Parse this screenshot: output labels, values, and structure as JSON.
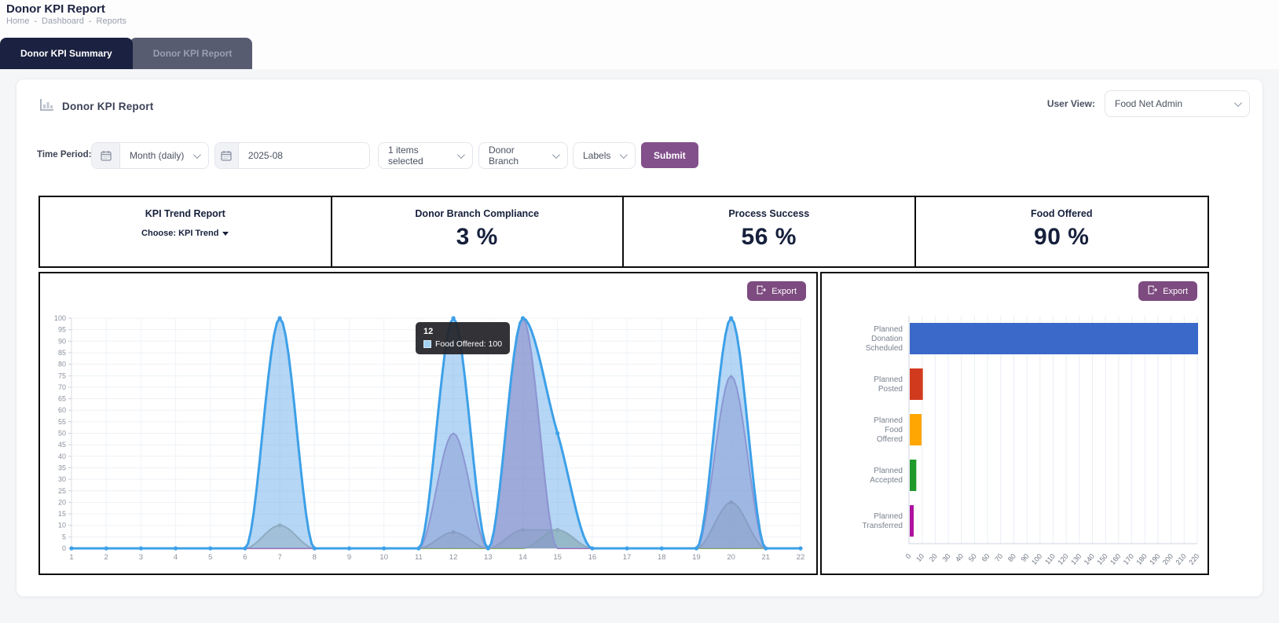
{
  "page": {
    "title": "Donor KPI Report",
    "breadcrumb": {
      "items": [
        "Home",
        "Dashboard",
        "Reports"
      ],
      "separator": "-"
    }
  },
  "tabs": [
    {
      "label": "Donor KPI Summary",
      "active": true
    },
    {
      "label": "Donor KPI Report",
      "active": false
    }
  ],
  "card": {
    "title": "Donor KPI Report",
    "user_view_label": "User View:",
    "user_view_value": "Food Net Admin"
  },
  "filters": {
    "time_period_label": "Time Period:",
    "period_type": "Month (daily)",
    "period_value": "2025-08",
    "items_selected": "1 items selected",
    "donor_branch": "Donor Branch",
    "labels": "Labels",
    "submit_label": "Submit"
  },
  "kpis": {
    "trend_title": "KPI Trend Report",
    "trend_choose": "Choose: KPI Trend",
    "cards": [
      {
        "label": "Donor Branch Compliance",
        "value": "3 %"
      },
      {
        "label": "Process Success",
        "value": "56 %"
      },
      {
        "label": "Food Offered",
        "value": "90 %"
      }
    ]
  },
  "export_label": "Export",
  "theme": {
    "accent_purple": "#82508a",
    "export_purple": "#7d4b80",
    "tab_active_bg": "#1b2140",
    "tab_inactive_bg": "#575c71",
    "kpi_text": "#16203c"
  },
  "chart_data": [
    {
      "type": "area",
      "title": "KPI Trend (daily)",
      "x": [
        1,
        2,
        3,
        4,
        5,
        6,
        7,
        8,
        9,
        10,
        11,
        12,
        13,
        14,
        15,
        16,
        17,
        18,
        19,
        20,
        21,
        22
      ],
      "ylim": [
        0,
        100
      ],
      "ytick_step": 5,
      "grid": true,
      "legend_position": "none",
      "tooltip": {
        "title": "12",
        "series": "Food Offered",
        "value": 100,
        "chip_color": "#a3d2f2"
      },
      "series": [
        {
          "name": "pink-series",
          "color": "#e8538c",
          "fill": "rgba(232,83,140,0.30)",
          "markers": "none",
          "values": [
            0,
            0,
            0,
            0,
            0,
            0,
            0,
            0,
            0,
            0,
            0,
            0,
            0,
            100,
            0,
            0,
            0,
            0,
            0,
            0,
            0,
            0
          ]
        },
        {
          "name": "green-series",
          "color": "#8fae62",
          "fill": "rgba(143,174,98,0.40)",
          "markers": "peaks",
          "values": [
            0,
            0,
            0,
            0,
            0,
            0,
            0,
            0,
            0,
            0,
            0,
            0,
            0,
            0,
            8,
            0,
            0,
            0,
            0,
            0,
            0,
            0
          ]
        },
        {
          "name": "gray-series",
          "color": "#a89f90",
          "fill": "rgba(160,150,125,0.45)",
          "markers": "peaks",
          "values": [
            0,
            0,
            0,
            0,
            0,
            0,
            10,
            0,
            0,
            0,
            0,
            7,
            0,
            8,
            8,
            0,
            0,
            0,
            0,
            20,
            0,
            0
          ]
        },
        {
          "name": "purple-series",
          "color": "#a471b6",
          "fill": "rgba(140,95,165,0.42)",
          "markers": "none",
          "values": [
            0,
            0,
            0,
            0,
            0,
            0,
            0,
            0,
            0,
            0,
            0,
            50,
            0,
            100,
            0,
            0,
            0,
            0,
            0,
            75,
            0,
            0
          ]
        },
        {
          "name": "Food Offered",
          "color": "#3da0e8",
          "fill": "rgba(120,181,235,0.55)",
          "markers": "all",
          "values": [
            0,
            0,
            0,
            0,
            0,
            0,
            100,
            0,
            0,
            0,
            0,
            100,
            0,
            100,
            50,
            0,
            0,
            0,
            0,
            100,
            0,
            0
          ]
        }
      ]
    },
    {
      "type": "bar",
      "orientation": "horizontal",
      "categories": [
        "Planned Donation Scheduled",
        "Planned Posted",
        "Planned Food Offered",
        "Planned Accepted",
        "Planned Transferred"
      ],
      "values": [
        220,
        10,
        9,
        5,
        3
      ],
      "colors": [
        "#3b69c9",
        "#d23a1d",
        "#ffa602",
        "#21992b",
        "#ae12a0"
      ],
      "xlim": [
        0,
        220
      ],
      "xtick_step": 10,
      "grid": true,
      "legend_position": "none"
    }
  ]
}
